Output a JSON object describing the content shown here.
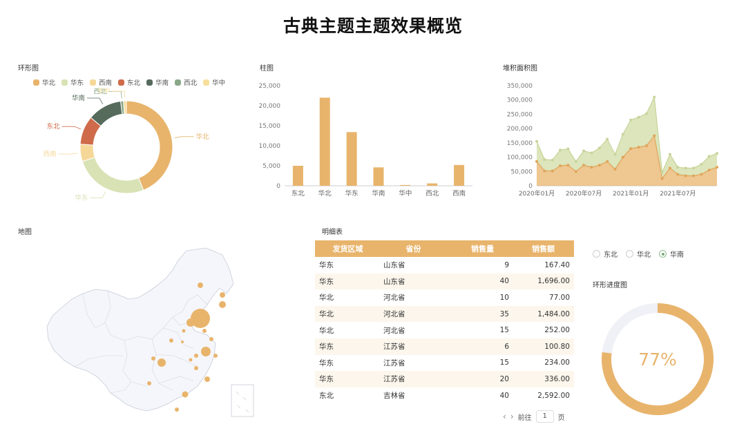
{
  "page": {
    "title": "古典主题主题效果概览"
  },
  "colors": {
    "gold": "#e8b46c",
    "pale_green": "#d8e2b4",
    "cream": "#f5d898",
    "red": "#cf6b4a",
    "dark_green": "#566b5c",
    "sage": "#8aa88a",
    "light_yellow": "#f7df9c",
    "track": "#f0f0f7"
  },
  "donut": {
    "title": "环形图",
    "legend": [
      "华北",
      "华东",
      "西南",
      "东北",
      "华南",
      "西北",
      "华中"
    ],
    "chart_data": {
      "type": "pie",
      "title": "环形图",
      "labels": [
        "华北",
        "华东",
        "西南",
        "东北",
        "华南",
        "西北",
        "华中"
      ],
      "values": [
        44,
        26,
        6,
        10,
        12,
        1,
        1
      ]
    }
  },
  "bar": {
    "title": "柱图",
    "chart_data": {
      "type": "bar",
      "title": "柱图",
      "categories": [
        "东北",
        "华北",
        "华东",
        "华南",
        "华中",
        "西北",
        "西南"
      ],
      "values": [
        5000,
        22000,
        13400,
        4600,
        200,
        600,
        5200
      ],
      "ylim": [
        0,
        25000
      ],
      "yticks": [
        "0",
        "5,000",
        "10,000",
        "15,000",
        "20,000",
        "25,000"
      ]
    }
  },
  "area": {
    "title": "堆积面积图",
    "chart_data": {
      "type": "area",
      "title": "堆积面积图",
      "x": [
        "2020-01",
        "2020-02",
        "2020-03",
        "2020-04",
        "2020-05",
        "2020-06",
        "2020-07",
        "2020-08",
        "2020-09",
        "2020-10",
        "2020-11",
        "2020-12",
        "2021-01",
        "2021-02",
        "2021-03",
        "2021-04",
        "2021-05",
        "2021-06",
        "2021-07",
        "2021-08",
        "2021-09",
        "2021-10",
        "2021-11",
        "2021-12"
      ],
      "xticks": [
        "2020年01月",
        "2020年07月",
        "2021年01月",
        "2021年07月"
      ],
      "ylim": [
        0,
        350000
      ],
      "yticks": [
        "0",
        "50,000",
        "100,000",
        "150,000",
        "200,000",
        "250,000",
        "300,000",
        "350,000"
      ],
      "series": [
        {
          "values": [
            85000,
            52000,
            52000,
            70000,
            72000,
            50000,
            72000,
            65000,
            72000,
            85000,
            58000,
            100000,
            130000,
            135000,
            140000,
            175000,
            25000,
            62000,
            40000,
            35000,
            35000,
            40000,
            55000,
            65000
          ]
        },
        {
          "values": [
            70000,
            40000,
            38000,
            55000,
            57000,
            35000,
            50000,
            50000,
            60000,
            78000,
            52000,
            80000,
            100000,
            105000,
            112000,
            135000,
            22000,
            48000,
            25000,
            27000,
            27000,
            35000,
            48000,
            48000
          ]
        }
      ]
    }
  },
  "map": {
    "title": "地图"
  },
  "table": {
    "title": "明细表",
    "columns": [
      "发货区域",
      "省份",
      "销售量",
      "销售额"
    ],
    "rows": [
      [
        "华东",
        "山东省",
        "9",
        "167.40"
      ],
      [
        "华东",
        "山东省",
        "40",
        "1,696.00"
      ],
      [
        "华北",
        "河北省",
        "10",
        "77.00"
      ],
      [
        "华北",
        "河北省",
        "35",
        "1,484.00"
      ],
      [
        "华北",
        "河北省",
        "15",
        "252.00"
      ],
      [
        "华东",
        "江苏省",
        "6",
        "100.80"
      ],
      [
        "华东",
        "江苏省",
        "15",
        "234.00"
      ],
      [
        "华东",
        "江苏省",
        "20",
        "336.00"
      ],
      [
        "东北",
        "吉林省",
        "40",
        "2,592.00"
      ]
    ],
    "pager": {
      "prev": "前往",
      "page": "1",
      "suffix": "页"
    }
  },
  "filter": {
    "options": [
      "东北",
      "华北",
      "华南"
    ],
    "selected": "华南"
  },
  "progress": {
    "title": "环形进度图",
    "value": 0.77,
    "label": "77%"
  }
}
